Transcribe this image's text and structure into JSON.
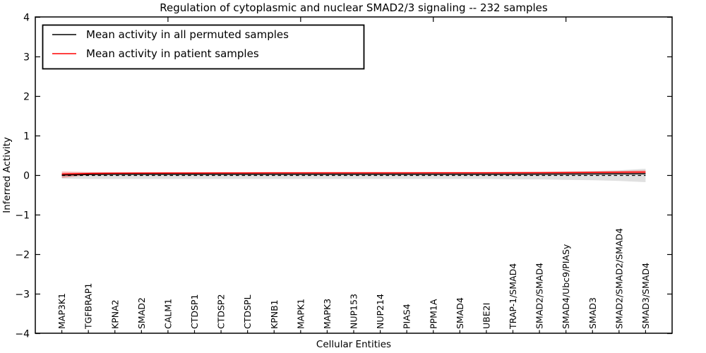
{
  "chart_data": {
    "type": "line",
    "title": "Regulation of cytoplasmic and nuclear SMAD2/3 signaling -- 232 samples",
    "xlabel": "Cellular Entities",
    "ylabel": "Inferred Activity",
    "ylim": [
      -4,
      4
    ],
    "grid": false,
    "legend_position": "upper-left",
    "y_ticks": [
      -4,
      -3,
      -2,
      -1,
      0,
      1,
      2,
      3,
      4
    ],
    "y_tick_labels": [
      "−4",
      "−3",
      "−2",
      "−1",
      "0",
      "1",
      "2",
      "3",
      "4"
    ],
    "top_tick_indices": [
      4,
      9,
      14,
      19
    ],
    "zero_line": {
      "value": 0,
      "style": "dotted",
      "color": "#000000"
    },
    "categories": [
      "MAP3K1",
      "TGFBRAP1",
      "KPNA2",
      "SMAD2",
      "CALM1",
      "CTDSP1",
      "CTDSP2",
      "CTDSPL",
      "KPNB1",
      "MAPK1",
      "MAPK3",
      "NUP153",
      "NUP214",
      "PIAS4",
      "PPM1A",
      "SMAD4",
      "UBE2I",
      "TRAP-1/SMAD4",
      "SMAD2/SMAD4",
      "SMAD4/Ubc9/PIASy",
      "SMAD3",
      "SMAD2/SMAD2/SMAD4",
      "SMAD3/SMAD4"
    ],
    "series": [
      {
        "name": "Mean activity in all permuted samples",
        "color": "#000000",
        "band_color": "#000000",
        "band_opacity": 0.12,
        "values": [
          0.01,
          0.025,
          0.03,
          0.03,
          0.03,
          0.03,
          0.03,
          0.03,
          0.03,
          0.03,
          0.03,
          0.03,
          0.03,
          0.03,
          0.03,
          0.03,
          0.03,
          0.032,
          0.034,
          0.035,
          0.038,
          0.04,
          0.042
        ],
        "band_hi": [
          0.06,
          0.08,
          0.08,
          0.08,
          0.08,
          0.08,
          0.08,
          0.08,
          0.08,
          0.08,
          0.08,
          0.08,
          0.08,
          0.08,
          0.08,
          0.08,
          0.08,
          0.09,
          0.09,
          0.1,
          0.11,
          0.13,
          0.17
        ],
        "band_lo": [
          -0.08,
          -0.09,
          -0.09,
          -0.09,
          -0.09,
          -0.09,
          -0.09,
          -0.09,
          -0.09,
          -0.09,
          -0.09,
          -0.09,
          -0.09,
          -0.09,
          -0.09,
          -0.09,
          -0.09,
          -0.1,
          -0.1,
          -0.11,
          -0.12,
          -0.14,
          -0.17
        ]
      },
      {
        "name": "Mean activity in patient samples",
        "color": "#ff0000",
        "band_color": "#ff0000",
        "band_opacity": 0.28,
        "values": [
          0.036,
          0.05,
          0.055,
          0.058,
          0.06,
          0.06,
          0.062,
          0.062,
          0.064,
          0.064,
          0.065,
          0.065,
          0.065,
          0.065,
          0.066,
          0.066,
          0.066,
          0.068,
          0.07,
          0.072,
          0.075,
          0.08,
          0.086
        ],
        "band_hi": [
          0.1,
          0.085,
          0.085,
          0.085,
          0.085,
          0.085,
          0.085,
          0.085,
          0.088,
          0.088,
          0.09,
          0.09,
          0.09,
          0.09,
          0.09,
          0.09,
          0.09,
          0.092,
          0.095,
          0.1,
          0.105,
          0.115,
          0.13
        ],
        "band_lo": [
          -0.062,
          0.01,
          0.02,
          0.028,
          0.032,
          0.034,
          0.036,
          0.038,
          0.04,
          0.04,
          0.04,
          0.04,
          0.04,
          0.04,
          0.04,
          0.04,
          0.04,
          0.042,
          0.044,
          0.045,
          0.045,
          0.045,
          0.04
        ]
      }
    ]
  }
}
